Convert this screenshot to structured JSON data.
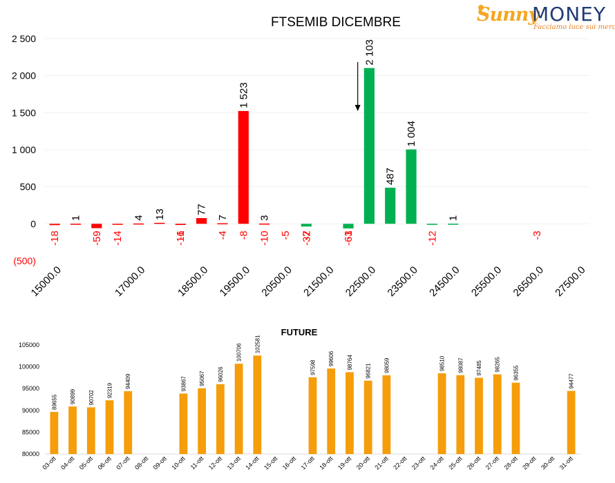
{
  "logo": {
    "brand_left": "Sunny",
    "brand_right": "MONEY",
    "tagline": "Facciamo luce sui mercati"
  },
  "chart_data": [
    {
      "type": "bar",
      "title": "FTSEMIB DICEMBRE",
      "ylim": [
        -500,
        2500
      ],
      "yticks": [
        {
          "value": 2500,
          "label": "2 500"
        },
        {
          "value": 2000,
          "label": "2 000"
        },
        {
          "value": 1500,
          "label": "1 500"
        },
        {
          "value": 1000,
          "label": "1 000"
        },
        {
          "value": 500,
          "label": "500"
        },
        {
          "value": 0,
          "label": "0"
        },
        {
          "value": -500,
          "label": "(500)"
        }
      ],
      "grid": true,
      "arrow_strike": 22500,
      "strikes": [
        15000,
        15500,
        16000,
        16500,
        17000,
        17500,
        18000,
        18500,
        19000,
        19500,
        20000,
        20500,
        21000,
        21500,
        22000,
        22500,
        23000,
        23500,
        24000,
        24500,
        25000,
        25500,
        26000,
        26500,
        27000,
        27500
      ],
      "xtick_labels": [
        {
          "strike": 15000,
          "label": "15000.0"
        },
        {
          "strike": 17000,
          "label": "17000.0"
        },
        {
          "strike": 18500,
          "label": "18500.0"
        },
        {
          "strike": 19500,
          "label": "19500.0"
        },
        {
          "strike": 20500,
          "label": "20500.0"
        },
        {
          "strike": 21500,
          "label": "21500.0"
        },
        {
          "strike": 22500,
          "label": "22500.0"
        },
        {
          "strike": 23500,
          "label": "23500.0"
        },
        {
          "strike": 24500,
          "label": "24500.0"
        },
        {
          "strike": 25500,
          "label": "25500.0"
        },
        {
          "strike": 26500,
          "label": "26500.0"
        },
        {
          "strike": 27500,
          "label": "27500.0"
        }
      ],
      "bars": [
        {
          "strike": 15000,
          "value": -18,
          "label": "-18",
          "color": "#ff0000"
        },
        {
          "strike": 15500,
          "value": 1,
          "label": "1",
          "color": "#ff0000"
        },
        {
          "strike": 16000,
          "value": -59,
          "label": "-59",
          "color": "#ff0000"
        },
        {
          "strike": 16500,
          "value": -14,
          "label": "-14",
          "color": "#ff0000"
        },
        {
          "strike": 17000,
          "value": 4,
          "label": "4",
          "color": "#ff0000"
        },
        {
          "strike": 17500,
          "value": 13,
          "label": "13",
          "color": "#ff0000"
        },
        {
          "strike": 18000,
          "value": -16,
          "label": "-16",
          "color": "#ff0000"
        },
        {
          "strike": 18500,
          "value": 77,
          "label": "77",
          "color": "#ff0000"
        },
        {
          "strike": 19000,
          "value": 7,
          "label": "7",
          "color": "#ff0000"
        },
        {
          "strike": 19500,
          "value": 1523,
          "label": "1 523",
          "color": "#ff0000"
        },
        {
          "strike": 20000,
          "value": 3,
          "label": "3",
          "color": "#ff0000"
        },
        {
          "strike": 21000,
          "value": -37,
          "label": "-37",
          "color": "#00b050"
        },
        {
          "strike": 22000,
          "value": -63,
          "label": "-63",
          "color": "#00b050"
        },
        {
          "strike": 22500,
          "value": 2103,
          "label": "2 103",
          "color": "#00b050"
        },
        {
          "strike": 23000,
          "value": 487,
          "label": "487",
          "color": "#00b050"
        },
        {
          "strike": 23500,
          "value": 1004,
          "label": "1 004",
          "color": "#00b050"
        },
        {
          "strike": 24000,
          "value": -12,
          "label": "-12",
          "color": "#00b050"
        },
        {
          "strike": 24500,
          "value": 1,
          "label": "1",
          "color": "#00b050"
        }
      ],
      "extra_labels": [
        {
          "strike": 18000,
          "label": "-1",
          "value": -1,
          "color": "#ff0000"
        },
        {
          "strike": 19000,
          "label": "-4",
          "value": -4,
          "color": "#ff0000"
        },
        {
          "strike": 19500,
          "label": "-8",
          "value": -8,
          "color": "#ff0000"
        },
        {
          "strike": 20000,
          "label": "-10",
          "value": -10,
          "color": "#ff0000"
        },
        {
          "strike": 20500,
          "label": "-5",
          "value": -5,
          "color": "#ff0000"
        },
        {
          "strike": 21000,
          "label": "-2",
          "value": -2,
          "color": "#ff0000"
        },
        {
          "strike": 22000,
          "label": "-1",
          "value": -1,
          "color": "#ff0000"
        },
        {
          "strike": 26500,
          "label": "-3",
          "value": -3,
          "color": "#ff0000"
        }
      ]
    },
    {
      "type": "bar",
      "title": "FUTURE",
      "ylim": [
        80000,
        105000
      ],
      "yticks": [
        80000,
        85000,
        90000,
        95000,
        100000,
        105000
      ],
      "grid": false,
      "color": "#f59d0a",
      "categories": [
        "03-ott",
        "04-ott",
        "05-ott",
        "06-ott",
        "07-ott",
        "08-ott",
        "09-ott",
        "10-ott",
        "11-ott",
        "12-ott",
        "13-ott",
        "14-ott",
        "15-ott",
        "16-ott",
        "17-ott",
        "18-ott",
        "19-ott",
        "20-ott",
        "21-ott",
        "22-ott",
        "23-ott",
        "24-ott",
        "25-ott",
        "26-ott",
        "27-ott",
        "28-ott",
        "29-ott",
        "30-ott",
        "31-ott"
      ],
      "values": [
        89655,
        90899,
        90702,
        92319,
        94409,
        null,
        null,
        93867,
        95067,
        96026,
        100706,
        102581,
        null,
        null,
        97598,
        99606,
        98764,
        96821,
        98059,
        null,
        null,
        98510,
        98087,
        97485,
        98265,
        96355,
        null,
        null,
        94477
      ]
    }
  ]
}
